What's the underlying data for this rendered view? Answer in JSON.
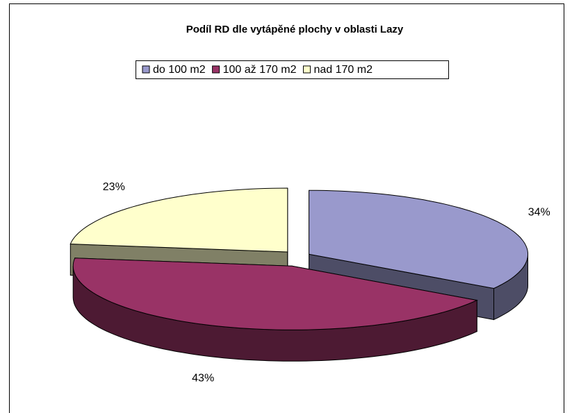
{
  "chart_data": {
    "type": "pie3d",
    "title": "Podíl RD dle vytápěné plochy v oblasti Lazy",
    "categories": [
      "do 100 m2",
      "100 až 170 m2",
      "nad 170 m2"
    ],
    "values": [
      34,
      43,
      23
    ],
    "value_labels": [
      "34%",
      "43%",
      "23%"
    ],
    "colors": [
      "#9999cc",
      "#993366",
      "#ffffcc"
    ],
    "legend": "top"
  }
}
